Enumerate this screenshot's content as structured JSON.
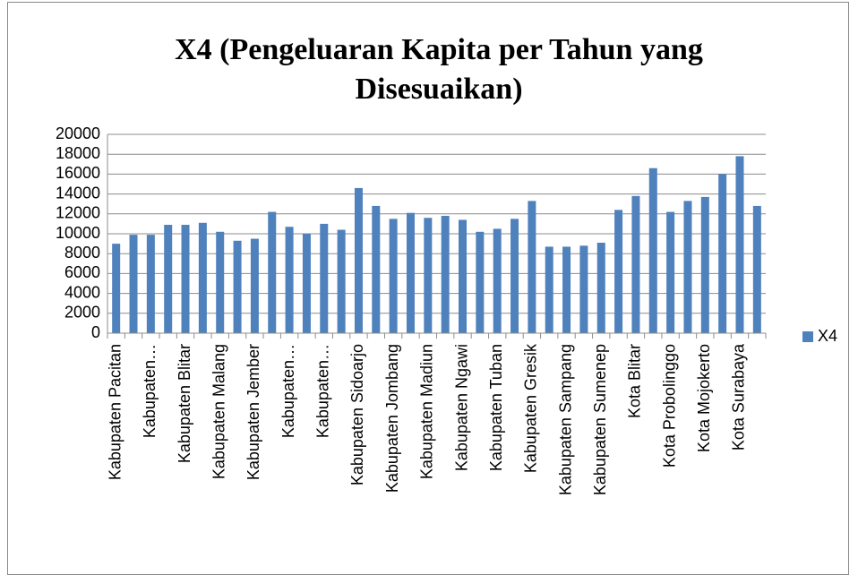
{
  "chart_data": {
    "type": "bar",
    "title": "X4 (Pengeluaran Kapita per Tahun yang Disesuaikan)",
    "categories": [
      "Kabupaten Pacitan",
      null,
      "Kabupaten…",
      null,
      "Kabupaten Blitar",
      null,
      "Kabupaten Malang",
      null,
      "Kabupaten Jember",
      null,
      "Kabupaten…",
      null,
      "Kabupaten…",
      null,
      "Kabupaten Sidoarjo",
      null,
      "Kabupaten Jombang",
      null,
      "Kabupaten Madiun",
      null,
      "Kabupaten Ngawi",
      null,
      "Kabupaten Tuban",
      null,
      "Kabupaten Gresik",
      null,
      "Kabupaten Sampang",
      null,
      "Kabupaten Sumenep",
      null,
      "Kota Blitar",
      null,
      "Kota Probolinggo",
      null,
      "Kota Mojokerto",
      null,
      "Kota Surabaya",
      null
    ],
    "series": [
      {
        "name": "X4",
        "color": "#4f81bd",
        "values": [
          9000,
          9900,
          9900,
          10900,
          10900,
          11100,
          10200,
          9300,
          9500,
          12200,
          10700,
          10000,
          11000,
          10400,
          14600,
          12800,
          11500,
          12100,
          11600,
          11800,
          11400,
          10200,
          10500,
          11500,
          13300,
          8700,
          8700,
          8800,
          9100,
          12400,
          13800,
          16600,
          12200,
          13300,
          13700,
          16000,
          17800,
          12800
        ]
      }
    ],
    "ylim": [
      0,
      20000
    ],
    "yticks": [
      0,
      2000,
      4000,
      6000,
      8000,
      10000,
      12000,
      14000,
      16000,
      18000,
      20000
    ],
    "grid": true,
    "legend": "right"
  }
}
